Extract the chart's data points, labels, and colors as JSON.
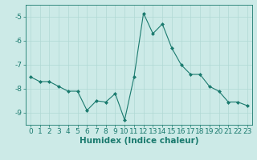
{
  "x": [
    0,
    1,
    2,
    3,
    4,
    5,
    6,
    7,
    8,
    9,
    10,
    11,
    12,
    13,
    14,
    15,
    16,
    17,
    18,
    19,
    20,
    21,
    22,
    23
  ],
  "y": [
    -7.5,
    -7.7,
    -7.7,
    -7.9,
    -8.1,
    -8.1,
    -8.9,
    -8.5,
    -8.55,
    -8.2,
    -9.3,
    -7.5,
    -4.85,
    -5.7,
    -5.3,
    -6.3,
    -7.0,
    -7.4,
    -7.4,
    -7.9,
    -8.1,
    -8.55,
    -8.55,
    -8.7
  ],
  "line_color": "#1a7a6e",
  "marker": "D",
  "marker_size": 2,
  "bg_color": "#cceae7",
  "grid_color": "#b0d8d4",
  "xlabel": "Humidex (Indice chaleur)",
  "xlim": [
    -0.5,
    23.5
  ],
  "ylim": [
    -9.5,
    -4.5
  ],
  "yticks": [
    -9,
    -8,
    -7,
    -6,
    -5
  ],
  "xticks": [
    0,
    1,
    2,
    3,
    4,
    5,
    6,
    7,
    8,
    9,
    10,
    11,
    12,
    13,
    14,
    15,
    16,
    17,
    18,
    19,
    20,
    21,
    22,
    23
  ],
  "tick_color": "#1a7a6e",
  "label_color": "#1a7a6e",
  "font_size": 6.5,
  "xlabel_fontsize": 7.5,
  "spine_color": "#1a7a6e"
}
